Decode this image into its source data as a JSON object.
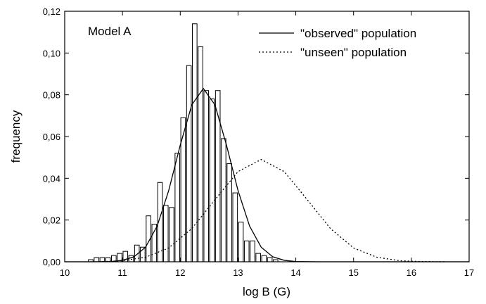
{
  "chart_data": {
    "type": "histogram",
    "annotation": "Model A",
    "x_label": "log B (G)",
    "y_label": "frequency",
    "xlim": [
      10,
      17
    ],
    "xticks": [
      10,
      11,
      12,
      13,
      14,
      15,
      16,
      17
    ],
    "ylim": [
      0,
      0.12
    ],
    "yticks": [
      {
        "value": 0,
        "label": "0,00"
      },
      {
        "value": 0.02,
        "label": "0,02"
      },
      {
        "value": 0.04,
        "label": "0,04"
      },
      {
        "value": 0.06,
        "label": "0,06"
      },
      {
        "value": 0.08,
        "label": "0,08"
      },
      {
        "value": 0.1,
        "label": "0,10"
      },
      {
        "value": 0.12,
        "label": "0,12"
      }
    ],
    "bins": [
      10.4,
      10.5,
      10.6,
      10.7,
      10.8,
      10.9,
      11.0,
      11.1,
      11.2,
      11.3,
      11.4,
      11.5,
      11.6,
      11.7,
      11.8,
      11.9,
      12.0,
      12.1,
      12.2,
      12.3,
      12.4,
      12.5,
      12.6,
      12.7,
      12.8,
      12.9,
      13.0,
      13.1,
      13.2,
      13.3,
      13.4,
      13.5,
      13.6,
      13.7
    ],
    "counts": [
      0.001,
      0.002,
      0.002,
      0.002,
      0.003,
      0.004,
      0.005,
      0.003,
      0.008,
      0.007,
      0.022,
      0.018,
      0.038,
      0.027,
      0.026,
      0.052,
      0.069,
      0.094,
      0.114,
      0.103,
      0.082,
      0.078,
      0.082,
      0.059,
      0.047,
      0.033,
      0.019,
      0.01,
      0.01,
      0.004,
      0.003,
      0.002,
      0.001
    ],
    "color": "#ffffff",
    "lines": [
      {
        "name": "\"observed\" population",
        "color": "#000000",
        "style": "solid",
        "x": [
          10.0,
          10.4,
          10.8,
          11.0,
          11.2,
          11.4,
          11.6,
          11.8,
          12.0,
          12.2,
          12.4,
          12.6,
          12.8,
          13.0,
          13.2,
          13.4,
          13.6,
          13.8,
          14.0,
          14.4,
          17.0
        ],
        "values": [
          0,
          0,
          0.0001,
          0.0007,
          0.0024,
          0.007,
          0.0171,
          0.0341,
          0.0559,
          0.0752,
          0.083,
          0.0752,
          0.0559,
          0.0341,
          0.0171,
          0.007,
          0.0024,
          0.0007,
          0.0001,
          0,
          0
        ]
      },
      {
        "name": "\"unseen\" population",
        "color": "#000000",
        "style": "dotted",
        "x": [
          10.6,
          11.0,
          11.4,
          11.8,
          12.2,
          12.6,
          13.0,
          13.4,
          13.8,
          14.2,
          14.6,
          15.0,
          15.4,
          15.8,
          16.2,
          16.6
        ],
        "values": [
          0,
          0.0005,
          0.0022,
          0.0066,
          0.0159,
          0.0297,
          0.0432,
          0.049,
          0.0432,
          0.0297,
          0.0159,
          0.0066,
          0.0022,
          0.0005,
          0.0001,
          0
        ]
      }
    ],
    "legend": "upper right"
  }
}
